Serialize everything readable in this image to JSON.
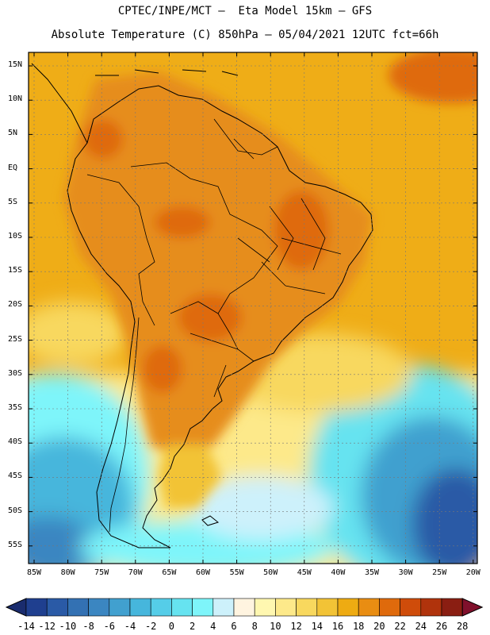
{
  "header": {
    "line1": "CPTEC/INPE/MCT –  Eta Model 15km – GFS",
    "line2": "Absolute Temperature (C) 850hPa – 05/04/2021 12UTC fct=66h"
  },
  "axes": {
    "lat_labels": [
      "15N",
      "10N",
      "5N",
      "EQ",
      "5S",
      "10S",
      "15S",
      "20S",
      "25S",
      "30S",
      "35S",
      "40S",
      "45S",
      "50S",
      "55S"
    ],
    "lon_labels": [
      "85W",
      "80W",
      "75W",
      "70W",
      "65W",
      "60W",
      "55W",
      "50W",
      "45W",
      "40W",
      "35W",
      "30W",
      "25W",
      "20W"
    ]
  },
  "colorbar": {
    "labels": [
      "-14",
      "-12",
      "-10",
      "-8",
      "-6",
      "-4",
      "-2",
      "0",
      "2",
      "4",
      "6",
      "8",
      "10",
      "12",
      "14",
      "16",
      "18",
      "20",
      "22",
      "24",
      "26",
      "28"
    ],
    "colors": [
      "#1f3f8f",
      "#2a5aa6",
      "#3371b3",
      "#3b86c1",
      "#41a0cf",
      "#46b6dc",
      "#55cde8",
      "#66e3f0",
      "#7ef5fa",
      "#cdf1fb",
      "#fff4e0",
      "#fff7b0",
      "#fde98a",
      "#f8d85e",
      "#f2c336",
      "#eeab12",
      "#e98d12",
      "#df6a0c",
      "#cf4c0a",
      "#b0330c",
      "#8a1e12"
    ],
    "under_color": "#1a2c6e",
    "over_color": "#80102c"
  },
  "colors": {
    "land": "#e68d1a",
    "ocean_warm": "#efad17"
  }
}
